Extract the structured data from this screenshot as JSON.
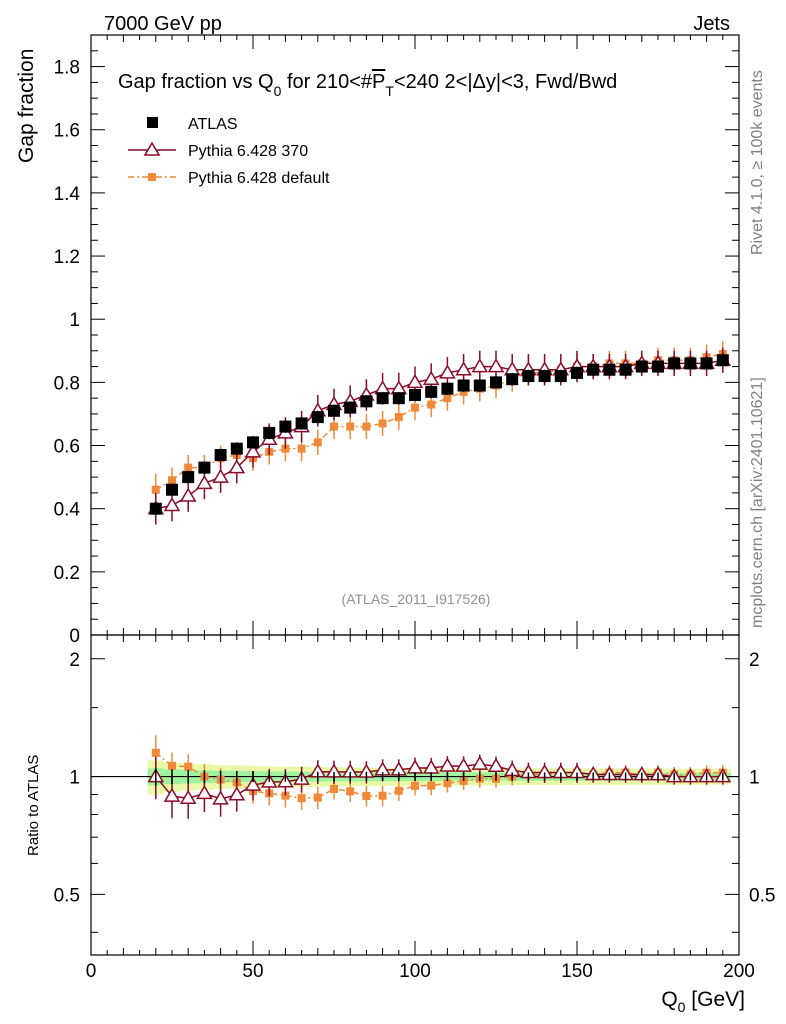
{
  "header": {
    "left": "7000 GeV pp",
    "right": "Jets"
  },
  "side_labels": {
    "rivet": "Rivet 4.1.0, ≥ 100k events",
    "mcplots": "mcplots.cern.ch [arXiv:2401.10621]"
  },
  "chart_data": {
    "type": "scatter",
    "title_parts": {
      "a": "Gap fraction vs Q",
      "sub0": "0",
      "b": " for 210<#",
      "p": "P",
      "sub_t": "T",
      "c": "<240  2<|Δy|<3, Fwd/Bwd"
    },
    "ylabel": "Gap fraction",
    "ratio_ylabel": "Ratio to ATLAS",
    "xlabel_main": "Q",
    "xlabel_sub": "0",
    "xlabel_unit": " [GeV]",
    "watermark": "(ATLAS_2011_I917526)",
    "xlim": [
      0,
      200
    ],
    "ylim": [
      0,
      1.9
    ],
    "ratio_ylim": [
      0.35,
      2.3
    ],
    "x_ticks": [
      0,
      50,
      100,
      150,
      200
    ],
    "y_ticks": [
      0,
      0.2,
      0.4,
      0.6,
      0.8,
      1,
      1.2,
      1.4,
      1.6,
      1.8
    ],
    "y_tick_labels": [
      "0",
      "0.2",
      "0.4",
      "0.6",
      "0.8",
      "1",
      "1.2",
      "1.4",
      "1.6",
      "1.8"
    ],
    "ratio_ticks": [
      0.5,
      1,
      2
    ],
    "ratio_tick_labels": [
      "0.5",
      "1",
      "2"
    ],
    "x": [
      20,
      25,
      30,
      35,
      40,
      45,
      50,
      55,
      60,
      65,
      70,
      75,
      80,
      85,
      90,
      95,
      100,
      105,
      110,
      115,
      120,
      125,
      130,
      135,
      140,
      145,
      150,
      155,
      160,
      165,
      170,
      175,
      180,
      185,
      190,
      195
    ],
    "series": [
      {
        "name": "ATLAS",
        "color": "#000000",
        "marker": "square",
        "values": [
          0.4,
          0.46,
          0.5,
          0.53,
          0.57,
          0.59,
          0.61,
          0.64,
          0.66,
          0.67,
          0.69,
          0.71,
          0.72,
          0.74,
          0.75,
          0.75,
          0.76,
          0.77,
          0.78,
          0.79,
          0.79,
          0.8,
          0.81,
          0.82,
          0.82,
          0.82,
          0.83,
          0.84,
          0.84,
          0.84,
          0.85,
          0.85,
          0.86,
          0.86,
          0.86,
          0.87
        ],
        "errors": [
          0.02,
          0.02,
          0.02,
          0.02,
          0.02,
          0.02,
          0.02,
          0.02,
          0.02,
          0.02,
          0.02,
          0.02,
          0.02,
          0.02,
          0.02,
          0.02,
          0.02,
          0.02,
          0.02,
          0.02,
          0.02,
          0.02,
          0.02,
          0.02,
          0.02,
          0.02,
          0.02,
          0.02,
          0.02,
          0.02,
          0.02,
          0.02,
          0.02,
          0.02,
          0.02,
          0.02
        ]
      },
      {
        "name": "Pythia 6.428 370",
        "color": "#8b0a2a",
        "marker": "triangle-open",
        "values": [
          0.4,
          0.41,
          0.44,
          0.48,
          0.5,
          0.53,
          0.58,
          0.62,
          0.64,
          0.66,
          0.71,
          0.73,
          0.74,
          0.76,
          0.78,
          0.78,
          0.8,
          0.81,
          0.83,
          0.84,
          0.85,
          0.85,
          0.84,
          0.84,
          0.84,
          0.84,
          0.85,
          0.85,
          0.85,
          0.85,
          0.86,
          0.86,
          0.86,
          0.86,
          0.86,
          0.87
        ],
        "errors": [
          0.05,
          0.05,
          0.05,
          0.05,
          0.05,
          0.05,
          0.05,
          0.05,
          0.05,
          0.05,
          0.05,
          0.05,
          0.05,
          0.05,
          0.05,
          0.05,
          0.05,
          0.05,
          0.05,
          0.05,
          0.05,
          0.05,
          0.05,
          0.05,
          0.05,
          0.05,
          0.05,
          0.04,
          0.04,
          0.04,
          0.04,
          0.04,
          0.04,
          0.04,
          0.04,
          0.04
        ]
      },
      {
        "name": "Pythia 6.428 default",
        "color": "#f08a3a",
        "marker": "square-small",
        "values": [
          0.46,
          0.49,
          0.53,
          0.53,
          0.56,
          0.57,
          0.56,
          0.58,
          0.59,
          0.59,
          0.61,
          0.66,
          0.66,
          0.66,
          0.67,
          0.69,
          0.72,
          0.73,
          0.75,
          0.77,
          0.78,
          0.79,
          0.81,
          0.83,
          0.83,
          0.84,
          0.85,
          0.85,
          0.86,
          0.86,
          0.86,
          0.87,
          0.87,
          0.87,
          0.88,
          0.89
        ],
        "errors": [
          0.05,
          0.04,
          0.04,
          0.04,
          0.04,
          0.04,
          0.04,
          0.04,
          0.04,
          0.04,
          0.04,
          0.04,
          0.04,
          0.04,
          0.04,
          0.04,
          0.04,
          0.04,
          0.04,
          0.04,
          0.04,
          0.04,
          0.04,
          0.04,
          0.04,
          0.04,
          0.04,
          0.04,
          0.04,
          0.04,
          0.04,
          0.04,
          0.04,
          0.04,
          0.04,
          0.04
        ]
      }
    ]
  }
}
